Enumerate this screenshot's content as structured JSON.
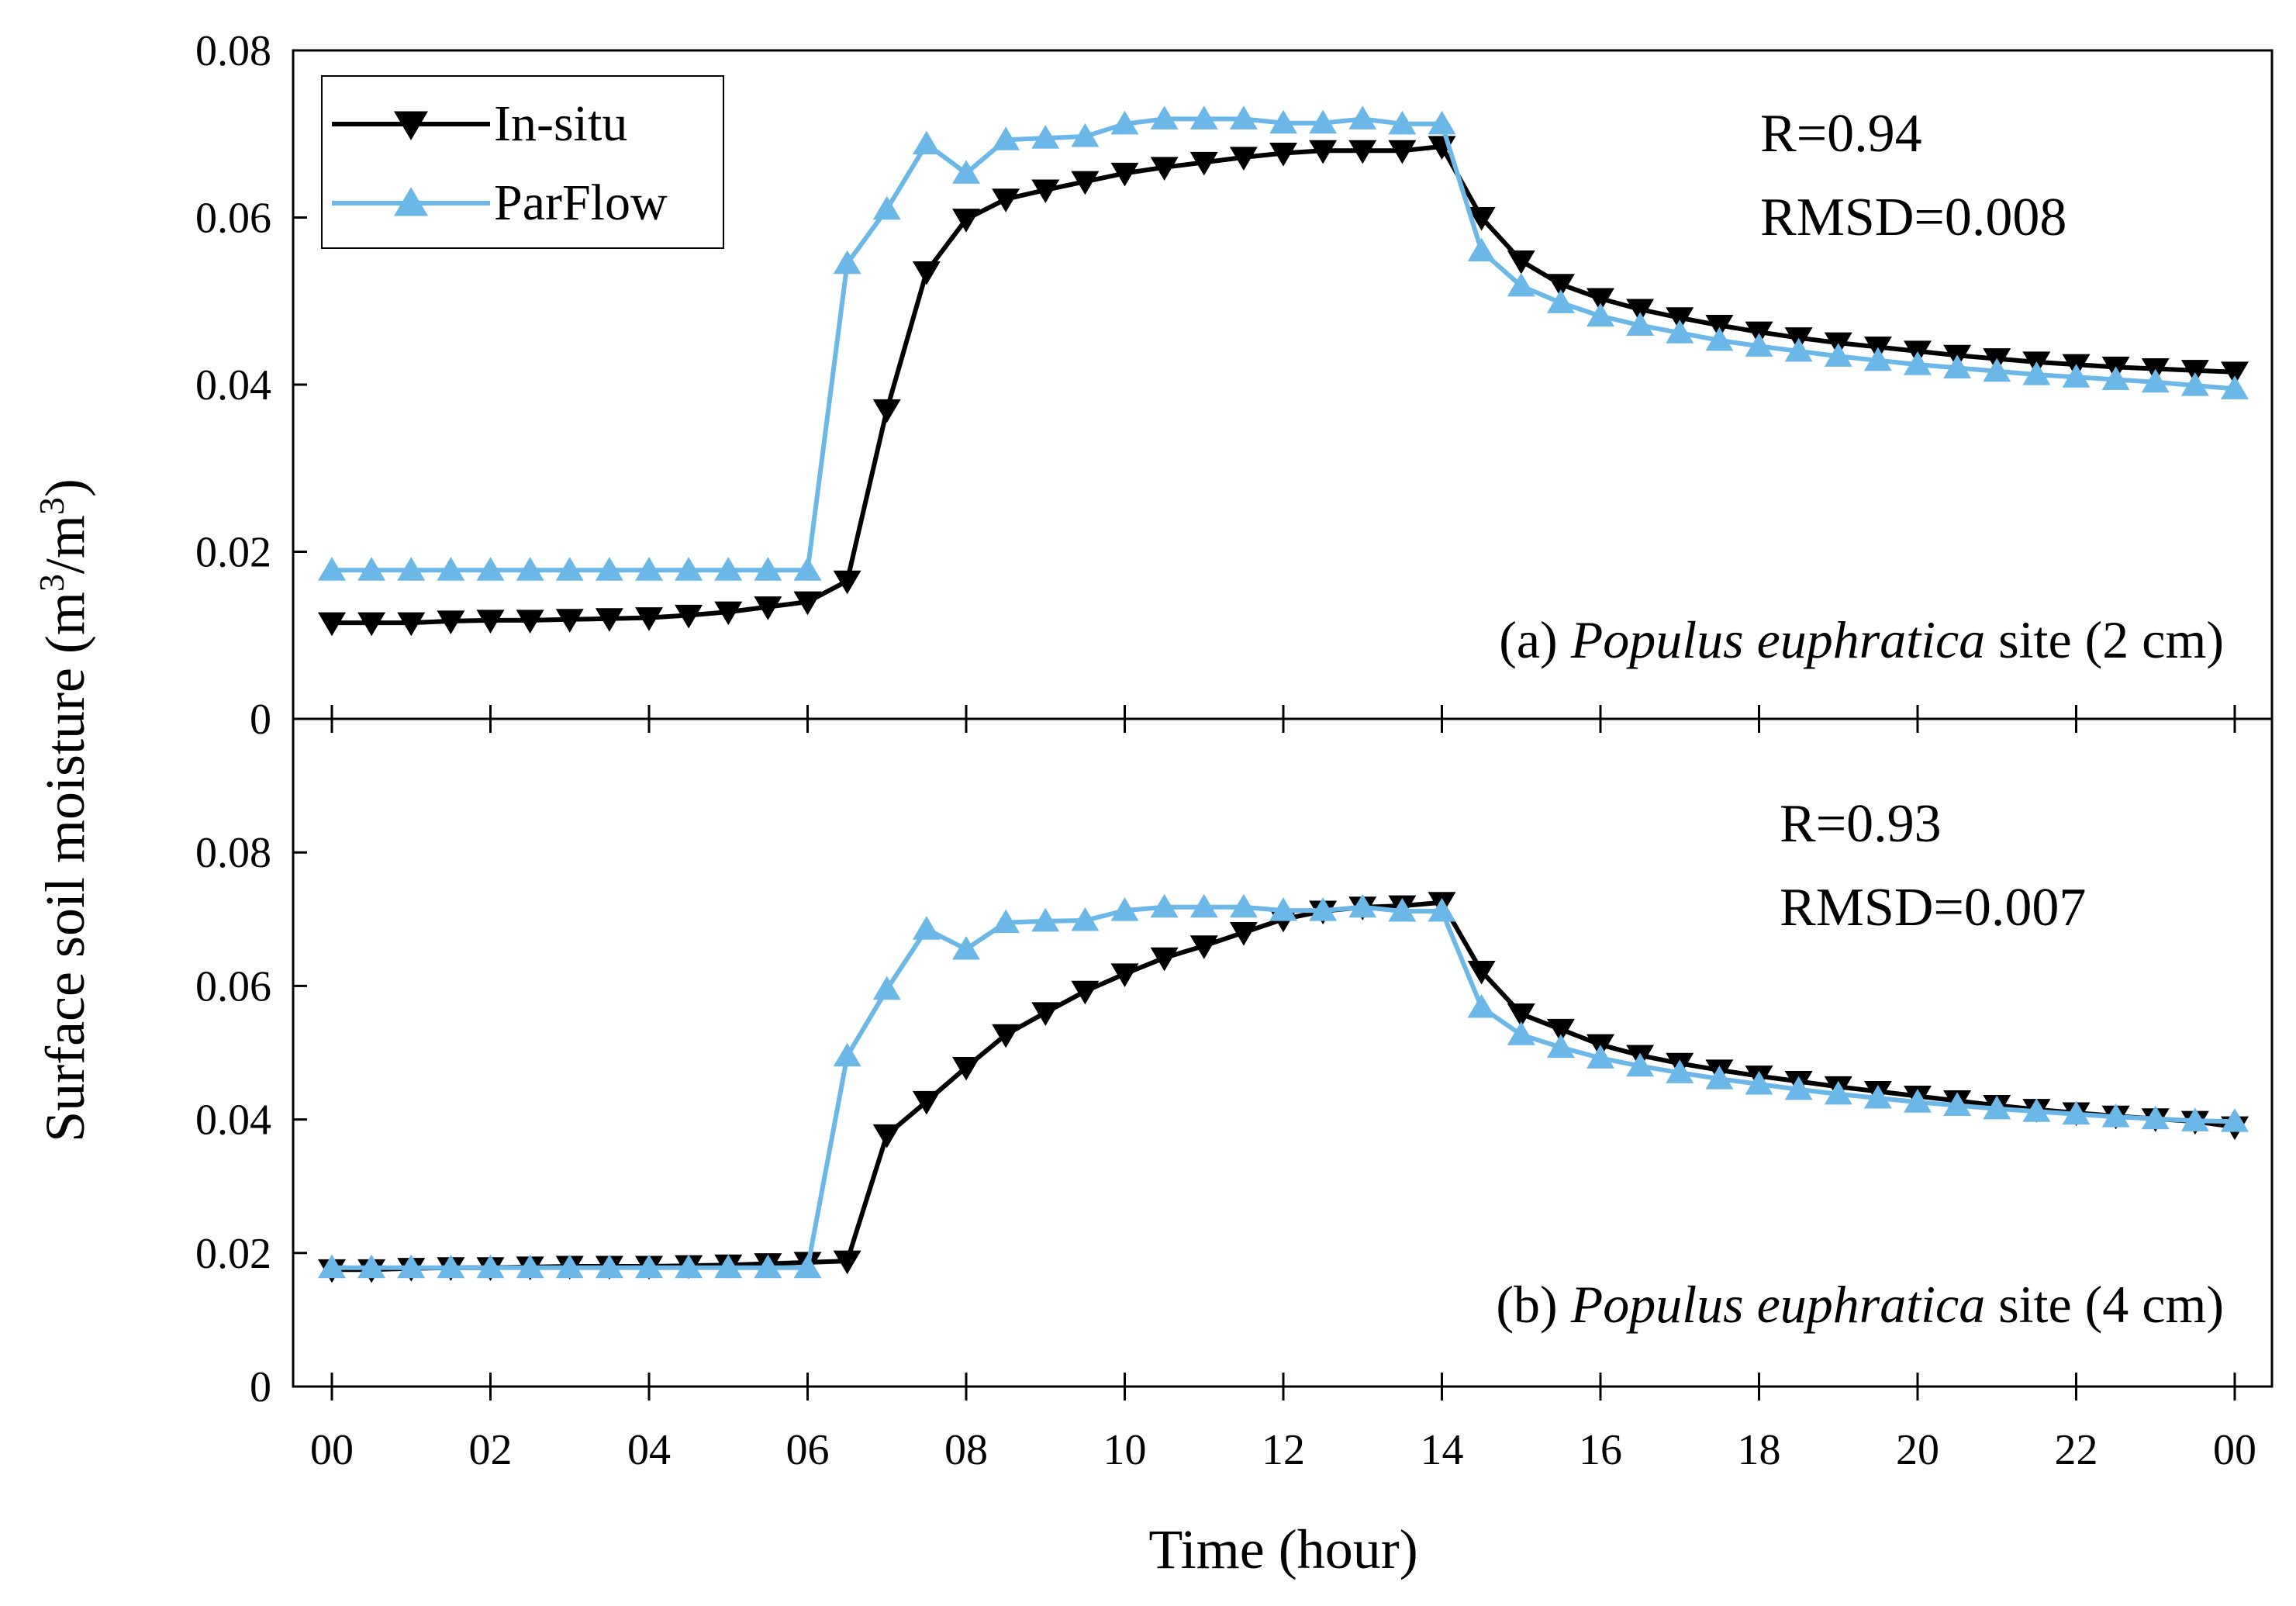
{
  "chart_data": {
    "type": "line",
    "x_tick_labels": [
      "00",
      "02",
      "04",
      "06",
      "08",
      "10",
      "12",
      "14",
      "16",
      "18",
      "20",
      "22",
      "00"
    ],
    "xlabel": "Time (hour)",
    "ylabel": {
      "prefix": "Surface soil moisture (m",
      "mid": "/m",
      "suffix": ")",
      "exp": "3"
    },
    "xlim": [
      0,
      24
    ],
    "legend": [
      {
        "name": "In-situ",
        "marker": "triangle-down",
        "color": "#000000"
      },
      {
        "name": "ParFlow",
        "marker": "triangle-up",
        "color": "#6bb8e8"
      }
    ],
    "panels": [
      {
        "label_prefix": "(a) ",
        "label_species": "Populus euphratica",
        "label_suffix": " site (2 cm)",
        "stat_r": "R=0.94",
        "stat_rmsd": "RMSD=0.008",
        "ylim": [
          0,
          0.08
        ],
        "y_ticks": [
          0,
          0.02,
          0.04,
          0.06,
          0.08
        ],
        "y_tick_labels": [
          "0",
          "0.02",
          "0.04",
          "0.06",
          "0.08"
        ],
        "x": [
          0,
          0.5,
          1,
          1.5,
          2,
          2.5,
          3,
          3.5,
          4,
          4.5,
          5,
          5.5,
          6,
          6.5,
          7,
          7.5,
          8,
          8.5,
          9,
          9.5,
          10,
          10.5,
          11,
          11.5,
          12,
          12.5,
          13,
          13.5,
          14,
          14.5,
          15,
          15.5,
          16,
          16.5,
          17,
          17.5,
          18,
          18.5,
          19,
          19.5,
          20,
          20.5,
          21,
          21.5,
          22,
          22.5,
          23,
          23.5,
          24
        ],
        "series": [
          {
            "name": "In-situ",
            "values": [
              0.0115,
              0.0115,
              0.0115,
              0.0117,
              0.0118,
              0.0118,
              0.0119,
              0.012,
              0.0121,
              0.0124,
              0.0128,
              0.0134,
              0.014,
              0.0165,
              0.037,
              0.0535,
              0.0598,
              0.0622,
              0.0633,
              0.0643,
              0.0653,
              0.066,
              0.0666,
              0.0672,
              0.0677,
              0.068,
              0.068,
              0.068,
              0.0685,
              0.06,
              0.0548,
              0.052,
              0.0503,
              0.049,
              0.048,
              0.0471,
              0.0463,
              0.0456,
              0.045,
              0.0445,
              0.044,
              0.0435,
              0.0431,
              0.0427,
              0.0424,
              0.0421,
              0.0419,
              0.0417,
              0.0415
            ]
          },
          {
            "name": "ParFlow",
            "values": [
              0.0178,
              0.0178,
              0.0178,
              0.0178,
              0.0178,
              0.0178,
              0.0178,
              0.0178,
              0.0178,
              0.0178,
              0.0178,
              0.0178,
              0.0178,
              0.0545,
              0.061,
              0.0688,
              0.0653,
              0.0693,
              0.0695,
              0.0697,
              0.0712,
              0.0718,
              0.0718,
              0.0718,
              0.0713,
              0.0713,
              0.0718,
              0.0712,
              0.0712,
              0.056,
              0.0518,
              0.0498,
              0.0482,
              0.0471,
              0.0462,
              0.0453,
              0.0446,
              0.044,
              0.0434,
              0.0429,
              0.0424,
              0.042,
              0.0416,
              0.0412,
              0.0409,
              0.0406,
              0.0403,
              0.0399,
              0.0395
            ]
          }
        ]
      },
      {
        "label_prefix": "(b) ",
        "label_species": "Populus euphratica",
        "label_suffix": " site (4 cm)",
        "stat_r": "R=0.93",
        "stat_rmsd": "RMSD=0.007",
        "ylim": [
          0,
          0.1
        ],
        "y_ticks": [
          0,
          0.02,
          0.04,
          0.06,
          0.08
        ],
        "y_tick_labels": [
          "0",
          "0.02",
          "0.04",
          "0.06",
          "0.08"
        ],
        "x": [
          0,
          0.5,
          1,
          1.5,
          2,
          2.5,
          3,
          3.5,
          4,
          4.5,
          5,
          5.5,
          6,
          6.5,
          7,
          7.5,
          8,
          8.5,
          9,
          9.5,
          10,
          10.5,
          11,
          11.5,
          12,
          12.5,
          13,
          13.5,
          14,
          14.5,
          15,
          15.5,
          16,
          16.5,
          17,
          17.5,
          18,
          18.5,
          19,
          19.5,
          20,
          20.5,
          21,
          21.5,
          22,
          22.5,
          23,
          23.5,
          24
        ],
        "series": [
          {
            "name": "In-situ",
            "values": [
              0.0175,
              0.0175,
              0.0177,
              0.0178,
              0.0178,
              0.0179,
              0.018,
              0.018,
              0.018,
              0.0181,
              0.0182,
              0.0184,
              0.0186,
              0.0188,
              0.0377,
              0.0427,
              0.0478,
              0.0527,
              0.056,
              0.0592,
              0.0618,
              0.0642,
              0.066,
              0.068,
              0.07,
              0.0712,
              0.0718,
              0.072,
              0.0725,
              0.0622,
              0.0558,
              0.0535,
              0.0512,
              0.0496,
              0.0484,
              0.0474,
              0.0465,
              0.0457,
              0.0449,
              0.0442,
              0.0435,
              0.0428,
              0.0421,
              0.0415,
              0.041,
              0.0405,
              0.0401,
              0.0397,
              0.0389
            ]
          },
          {
            "name": "ParFlow",
            "values": [
              0.0178,
              0.0178,
              0.0178,
              0.0178,
              0.0178,
              0.0178,
              0.0178,
              0.0178,
              0.0178,
              0.0178,
              0.0178,
              0.0178,
              0.0178,
              0.0495,
              0.0595,
              0.0685,
              0.0655,
              0.0695,
              0.0697,
              0.0698,
              0.0713,
              0.0718,
              0.0718,
              0.0718,
              0.0713,
              0.0713,
              0.0718,
              0.0712,
              0.0712,
              0.0568,
              0.0527,
              0.0508,
              0.0492,
              0.048,
              0.047,
              0.0461,
              0.0453,
              0.0445,
              0.0438,
              0.0432,
              0.0426,
              0.0421,
              0.0416,
              0.0412,
              0.0408,
              0.0404,
              0.0401,
              0.0398,
              0.0397
            ]
          }
        ]
      }
    ]
  }
}
